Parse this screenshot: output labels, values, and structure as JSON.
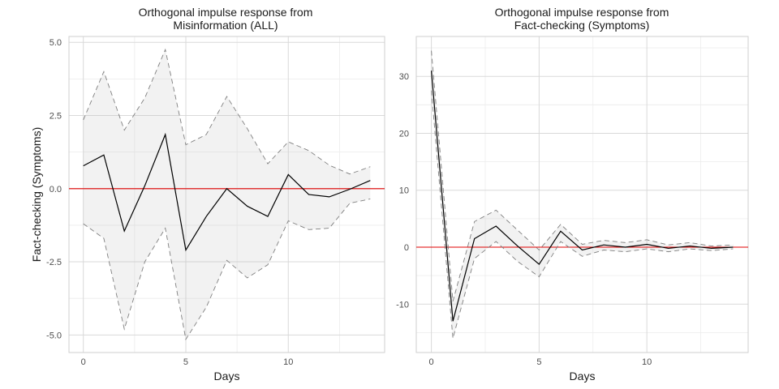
{
  "colors": {
    "response": "#000000",
    "ci": "#7f7f7f",
    "band": "#bdbdbd",
    "zero_line": "#e00000",
    "grid": "#d9d9d9"
  },
  "chart_data": [
    {
      "type": "line",
      "title_line1": "Orthogonal impulse response from",
      "title_line2": "Misinformation (ALL)",
      "xlabel": "Days",
      "ylabel": "Fact-checking  (Symptoms)",
      "xlim": [
        -0.7,
        14.7
      ],
      "ylim": [
        -5.6,
        5.2
      ],
      "x_ticks": [
        0,
        5,
        10
      ],
      "y_ticks": [
        -5.0,
        -2.5,
        0.0,
        2.5,
        5.0
      ],
      "y_tick_labels": [
        "-5.0",
        "-2.5",
        "0.0",
        "2.5",
        "5.0"
      ],
      "x": [
        0,
        1,
        2,
        3,
        4,
        5,
        6,
        7,
        8,
        9,
        10,
        11,
        12,
        13,
        14
      ],
      "response": [
        0.78,
        1.15,
        -1.45,
        0.1,
        1.85,
        -2.1,
        -0.95,
        0.0,
        -0.6,
        -0.95,
        0.48,
        -0.2,
        -0.28,
        -0.02,
        0.28
      ],
      "upper": [
        2.35,
        4.0,
        2.0,
        3.1,
        4.75,
        1.5,
        1.85,
        3.15,
        2.05,
        0.85,
        1.6,
        1.3,
        0.8,
        0.5,
        0.75
      ],
      "lower": [
        -1.2,
        -1.7,
        -4.8,
        -2.5,
        -1.35,
        -5.15,
        -4.05,
        -2.45,
        -3.05,
        -2.6,
        -1.1,
        -1.4,
        -1.35,
        -0.5,
        -0.35
      ],
      "zero_line": 0,
      "grid": true
    },
    {
      "type": "line",
      "title_line1": "Orthogonal impulse response from",
      "title_line2": "Fact-checking  (Symptoms)",
      "xlabel": "Days",
      "ylabel": "",
      "xlim": [
        -0.7,
        14.7
      ],
      "ylim": [
        -18.5,
        37
      ],
      "x_ticks": [
        0,
        5,
        10
      ],
      "y_ticks": [
        -10,
        0,
        10,
        20,
        30
      ],
      "y_tick_labels": [
        "-10",
        "0",
        "10",
        "20",
        "30"
      ],
      "x": [
        0,
        1,
        2,
        3,
        4,
        5,
        6,
        7,
        8,
        9,
        10,
        11,
        12,
        13,
        14
      ],
      "response": [
        31.0,
        -13.0,
        1.5,
        3.7,
        0.2,
        -3.0,
        2.8,
        -0.5,
        0.4,
        0.0,
        0.5,
        -0.2,
        0.2,
        -0.2,
        0.0
      ],
      "upper": [
        34.5,
        -9.5,
        4.5,
        6.5,
        3.0,
        -0.5,
        4.0,
        0.5,
        1.2,
        0.8,
        1.3,
        0.4,
        0.8,
        0.2,
        0.4
      ],
      "lower": [
        27.5,
        -16.0,
        -2.0,
        1.0,
        -2.5,
        -5.2,
        1.0,
        -1.6,
        -0.5,
        -0.8,
        -0.3,
        -0.8,
        -0.3,
        -0.6,
        -0.3
      ],
      "zero_line": 0,
      "grid": true
    }
  ]
}
